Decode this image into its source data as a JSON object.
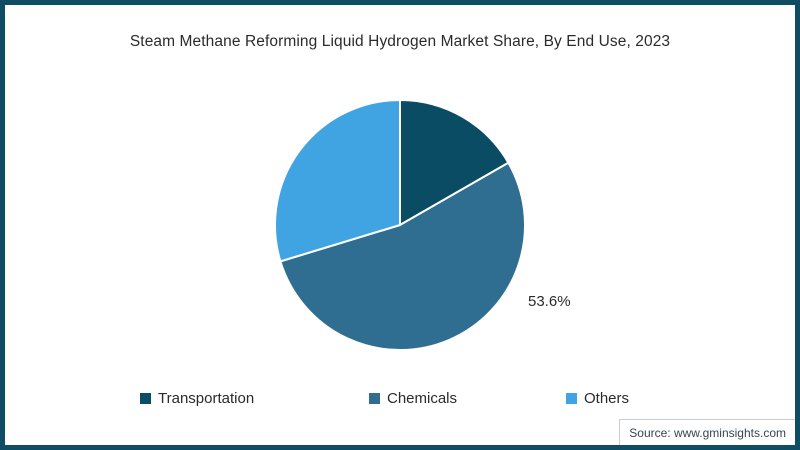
{
  "frame": {
    "border_color": "#0e4d63",
    "background": "#ffffff"
  },
  "chart_data": {
    "type": "pie",
    "title": "Steam Methane Reforming Liquid Hydrogen Market Share, By End Use, 2023",
    "categories": [
      "Transportation",
      "Chemicals",
      "Others"
    ],
    "values": [
      16.7,
      53.6,
      29.7
    ],
    "colors": [
      "#0a4c63",
      "#2f6e90",
      "#41a4e2"
    ],
    "slice_stroke": "#ffffff",
    "start_angle_deg": 0,
    "direction": "clockwise",
    "labeled_slice": {
      "category": "Chemicals",
      "text": "53.6%"
    },
    "legend_position": "bottom",
    "grid": "off"
  },
  "source": {
    "label": "Source: www.gminsights.com"
  }
}
